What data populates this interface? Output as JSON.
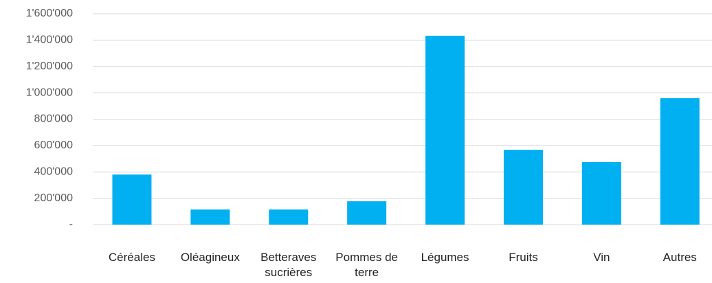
{
  "chart_data": {
    "type": "bar",
    "categories": [
      "Céréales",
      "Oléagineux",
      "Betteraves sucrières",
      "Pommes de terre",
      "Légumes",
      "Fruits",
      "Vin",
      "Autres"
    ],
    "values": [
      380000,
      115000,
      115000,
      177000,
      1433000,
      568000,
      474000,
      959000
    ],
    "color": "#00b0f0",
    "ylim": [
      0,
      1600000
    ],
    "yticks": [
      {
        "value": 0,
        "label": "-"
      },
      {
        "value": 200000,
        "label": "200'000"
      },
      {
        "value": 400000,
        "label": "400'000"
      },
      {
        "value": 600000,
        "label": "600'000"
      },
      {
        "value": 800000,
        "label": "800'000"
      },
      {
        "value": 1000000,
        "label": "1'000'000"
      },
      {
        "value": 1200000,
        "label": "1'200'000"
      },
      {
        "value": 1400000,
        "label": "1'400'000"
      },
      {
        "value": 1600000,
        "label": "1'600'000"
      }
    ],
    "grid": true
  }
}
